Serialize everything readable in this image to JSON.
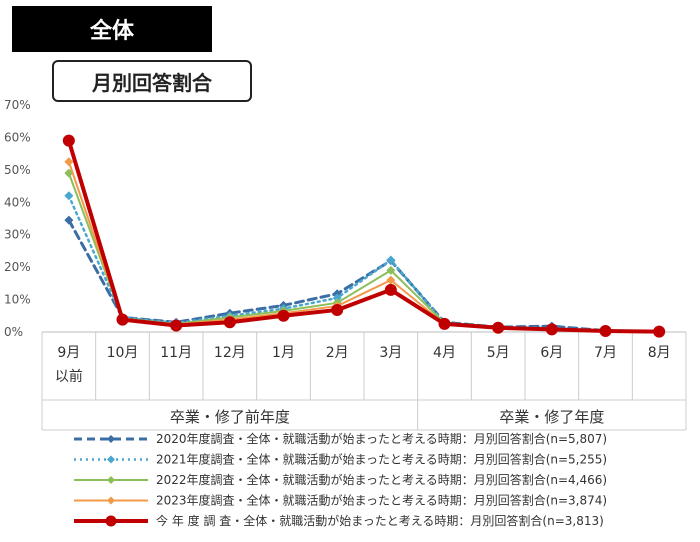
{
  "header": {
    "title": "全体"
  },
  "chart_subtitle": "月別回答割合",
  "chart_data": {
    "type": "line",
    "title": "全体",
    "subtitle": "月別回答割合",
    "ylim": [
      0,
      70
    ],
    "y_ticks": [
      "0%",
      "10%",
      "20%",
      "30%",
      "40%",
      "50%",
      "60%",
      "70%"
    ],
    "categories": [
      "9月 以前",
      "10月",
      "11月",
      "12月",
      "1月",
      "2月",
      "3月",
      "4月",
      "5月",
      "6月",
      "7月",
      "8月"
    ],
    "category_labels": [
      [
        "9月",
        "以前"
      ],
      [
        "10月"
      ],
      [
        "11月"
      ],
      [
        "12月"
      ],
      [
        "1月"
      ],
      [
        "2月"
      ],
      [
        "3月"
      ],
      [
        "4月"
      ],
      [
        "5月"
      ],
      [
        "6月"
      ],
      [
        "7月"
      ],
      [
        "8月"
      ]
    ],
    "groups": [
      {
        "label": "卒業・修了前年度",
        "span": [
          0,
          6
        ]
      },
      {
        "label": "卒業・修了年度",
        "span": [
          7,
          11
        ]
      }
    ],
    "grid": false,
    "legend_position": "bottom",
    "series": [
      {
        "name": "2020年度調査・全体・就職活動が始まったと考える時期：月別回答割合(n=5,807)",
        "color": "#3b6ea5",
        "dash": "8,5",
        "width": 3,
        "marker": "diamond",
        "values": [
          34.5,
          4.5,
          3.0,
          5.8,
          8.2,
          11.8,
          22.0,
          3.0,
          1.5,
          1.8,
          0.4,
          0.1
        ]
      },
      {
        "name": "2021年度調査・全体・就職活動が始まったと考える時期：月別回答割合(n=5,255)",
        "color": "#4aa8d0",
        "dash": "2,4",
        "width": 2.5,
        "marker": "diamond",
        "values": [
          42.0,
          4.5,
          2.8,
          5.0,
          7.2,
          10.5,
          22.2,
          2.8,
          1.5,
          1.2,
          0.4,
          0.1
        ]
      },
      {
        "name": "2022年度調査・全体・就職活動が始まったと考える時期：月別回答割合(n=4,466)",
        "color": "#8cbf5a",
        "dash": "",
        "width": 2,
        "marker": "diamond",
        "values": [
          49.0,
          4.2,
          2.5,
          4.5,
          6.5,
          9.0,
          19.0,
          2.8,
          1.5,
          1.0,
          0.4,
          0.1
        ]
      },
      {
        "name": "2023年度調査・全体・就職活動が始まったと考える時期：月別回答割合(n=3,874)",
        "color": "#f39a4a",
        "dash": "",
        "width": 2,
        "marker": "diamond",
        "values": [
          52.5,
          4.0,
          2.3,
          3.8,
          5.8,
          8.0,
          16.0,
          2.5,
          1.4,
          0.9,
          0.4,
          0.1
        ]
      },
      {
        "name": "今 年 度 調 査・全体・就職活動が始まったと考える時期：月別回答割合(n=3,813)",
        "color": "#c00000",
        "dash": "",
        "width": 4,
        "marker": "circle",
        "values": [
          59.0,
          3.8,
          2.0,
          3.0,
          5.0,
          6.8,
          13.0,
          2.5,
          1.3,
          0.8,
          0.3,
          0.1
        ]
      }
    ]
  }
}
